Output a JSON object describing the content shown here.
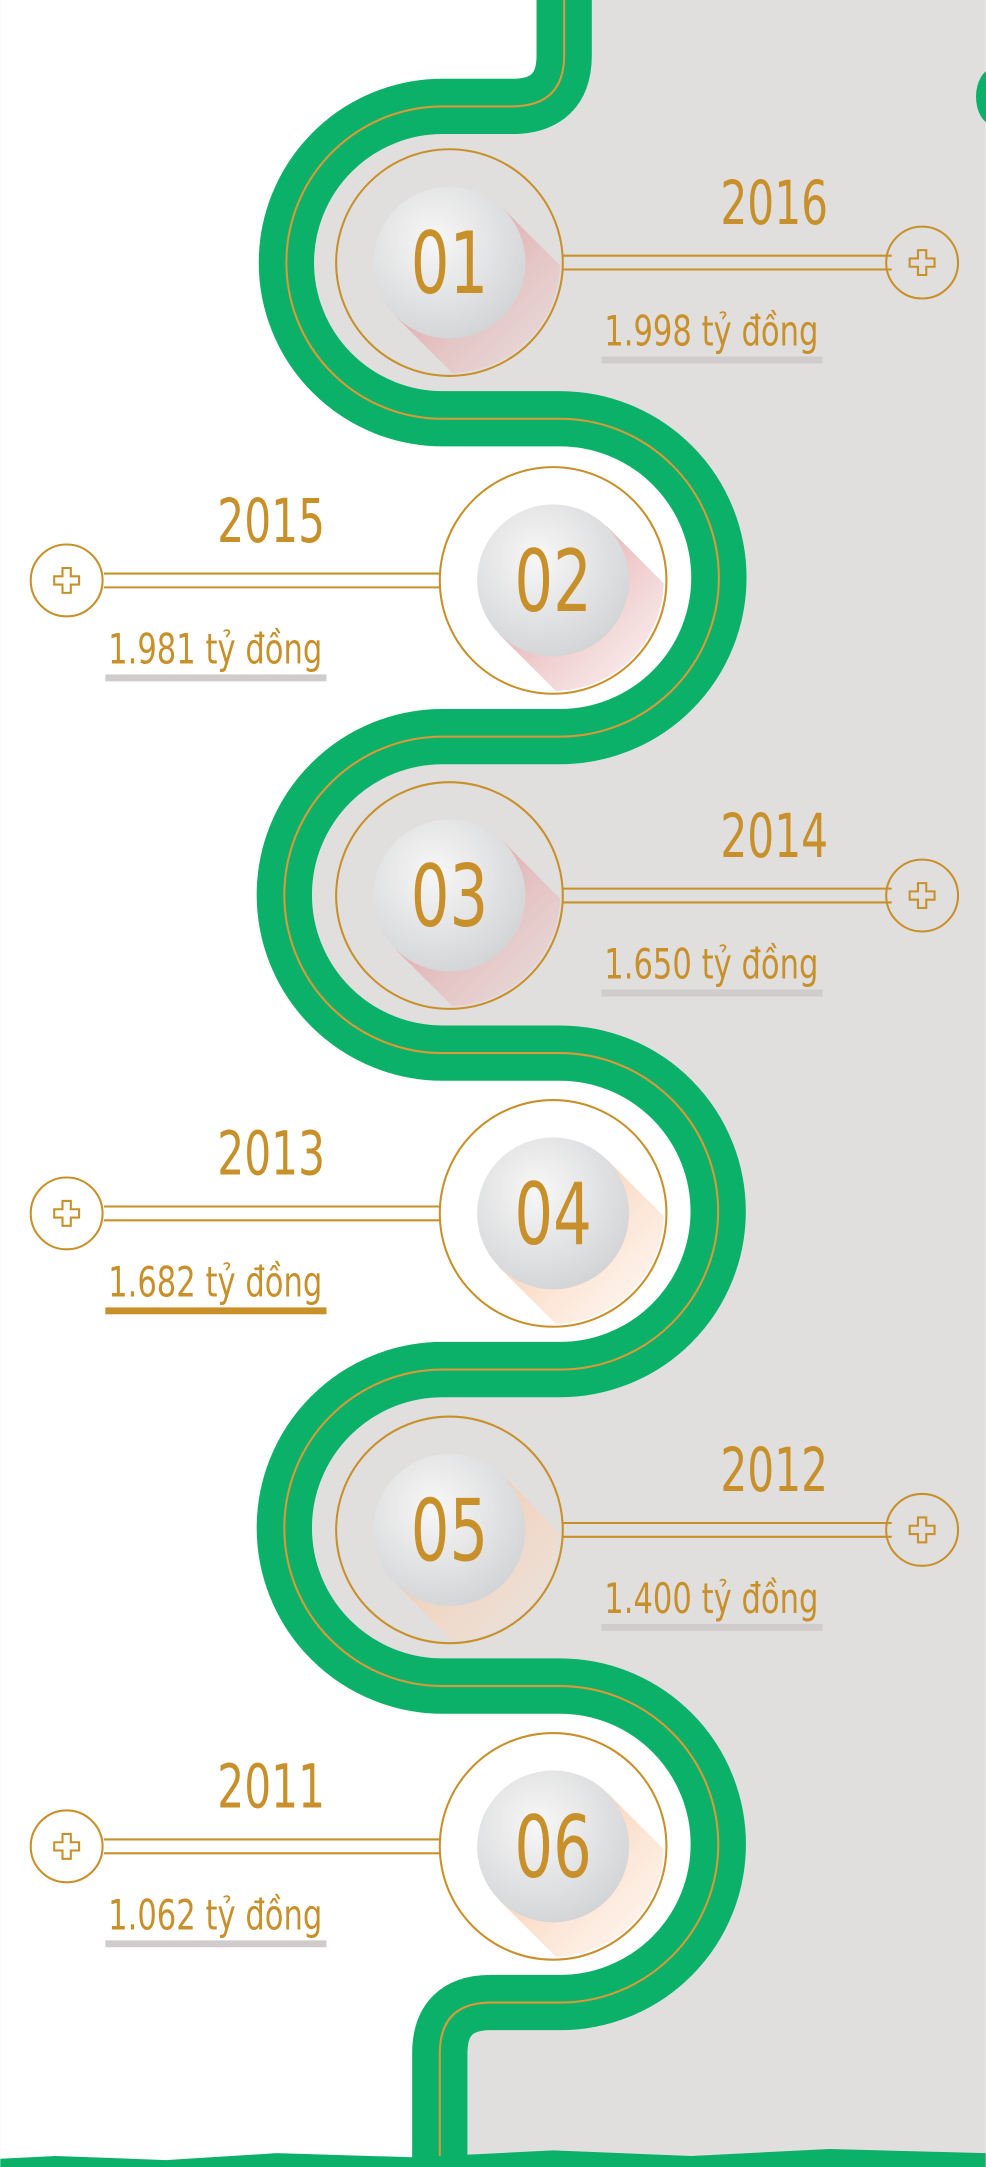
{
  "items": [
    {
      "number": "01",
      "year": "2016",
      "amount": "1.998 tỷ đồng"
    },
    {
      "number": "02",
      "year": "2015",
      "amount": "1.981 tỷ đồng"
    },
    {
      "number": "03",
      "year": "2014",
      "amount": "1.650 tỷ đồng"
    },
    {
      "number": "04",
      "year": "2013",
      "amount": "1.682 tỷ đồng"
    },
    {
      "number": "05",
      "year": "2012",
      "amount": "1.400 tỷ đồng"
    },
    {
      "number": "06",
      "year": "2011",
      "amount": "1.062 tỷ đồng"
    }
  ]
}
